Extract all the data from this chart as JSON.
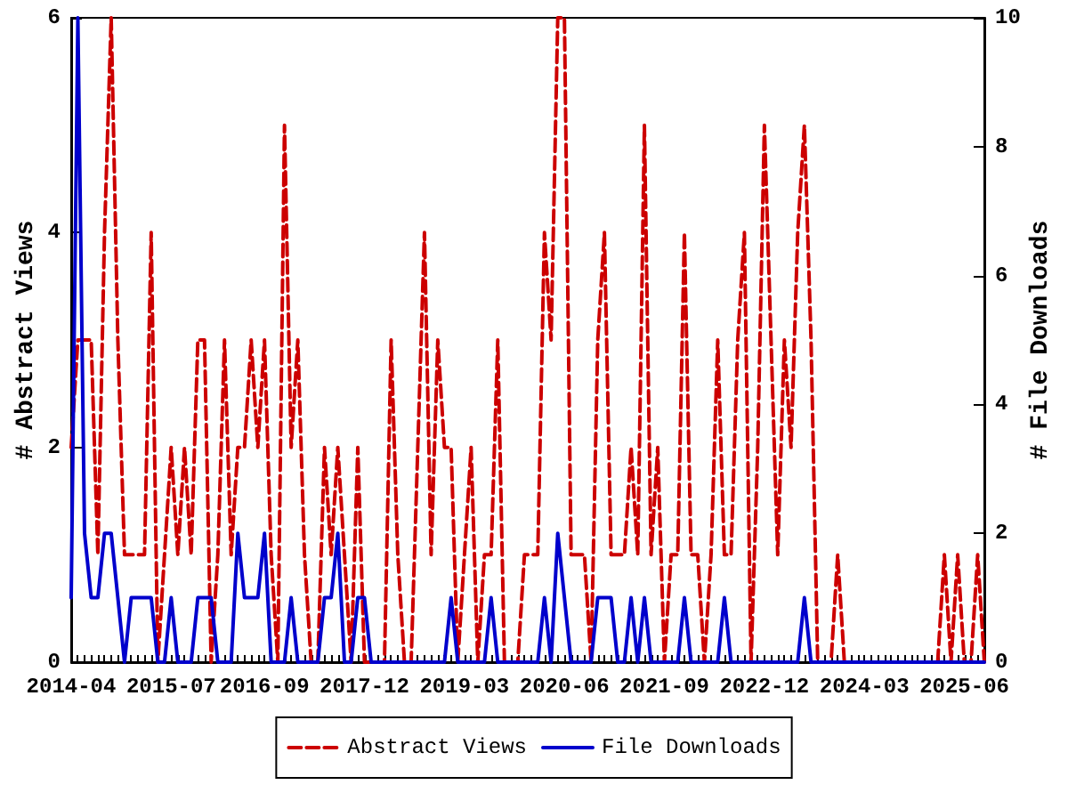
{
  "chart_data": {
    "type": "line",
    "ylabel": "# Abstract Views",
    "y2label": "# File Downloads",
    "categories": [
      "2014-04",
      null,
      null,
      null,
      null,
      null,
      null,
      null,
      null,
      null,
      null,
      null,
      null,
      null,
      null,
      "2015-07",
      null,
      null,
      null,
      null,
      null,
      null,
      null,
      null,
      null,
      null,
      null,
      null,
      null,
      "2016-09",
      null,
      null,
      null,
      null,
      null,
      null,
      null,
      null,
      null,
      null,
      null,
      null,
      null,
      null,
      "2017-12",
      null,
      null,
      null,
      null,
      null,
      null,
      null,
      null,
      null,
      null,
      null,
      null,
      null,
      null,
      "2019-03",
      null,
      null,
      null,
      null,
      null,
      null,
      null,
      null,
      null,
      null,
      null,
      null,
      null,
      null,
      "2020-06",
      null,
      null,
      null,
      null,
      null,
      null,
      null,
      null,
      null,
      null,
      null,
      null,
      null,
      null,
      "2021-09",
      null,
      null,
      null,
      null,
      null,
      null,
      null,
      null,
      null,
      null,
      null,
      null,
      null,
      null,
      "2022-12",
      null,
      null,
      null,
      null,
      null,
      null,
      null,
      null,
      null,
      null,
      null,
      null,
      null,
      null,
      "2024-03",
      null,
      null,
      null,
      null,
      null,
      null,
      null,
      null,
      null,
      null,
      null,
      null,
      null,
      null,
      "2025-06",
      null,
      null,
      null
    ],
    "series": [
      {
        "name": "Abstract Views",
        "color": "#cc0000",
        "line_style": "dashed",
        "values": [
          2,
          3,
          3,
          3,
          1,
          4,
          6,
          3,
          1,
          1,
          1,
          1,
          4,
          0,
          1,
          2,
          1,
          2,
          1,
          3,
          3,
          0,
          1,
          3,
          1,
          2,
          2,
          3,
          2,
          3,
          1,
          0,
          5,
          2,
          3,
          1,
          0,
          0,
          2,
          1,
          2,
          1,
          0,
          2,
          0,
          0,
          0,
          0,
          3,
          1,
          0,
          0,
          2,
          4,
          1,
          3,
          2,
          2,
          0,
          1,
          2,
          0,
          1,
          1,
          3,
          0,
          0,
          0,
          1,
          1,
          1,
          4,
          3,
          6,
          6,
          1,
          1,
          1,
          0,
          3,
          4,
          1,
          1,
          1,
          2,
          1,
          5,
          1,
          2,
          0,
          1,
          1,
          4,
          1,
          1,
          0,
          1,
          3,
          1,
          1,
          3,
          4,
          0,
          2,
          5,
          3,
          1,
          3,
          2,
          4,
          5,
          3,
          0,
          0,
          0,
          1,
          0,
          0,
          0,
          0,
          0,
          0,
          0,
          0,
          0,
          0,
          0,
          0,
          0,
          0,
          0,
          1,
          0,
          1,
          0,
          0,
          1,
          0
        ]
      },
      {
        "name": "File Downloads",
        "color": "#0000cc",
        "line_style": "solid",
        "axis": "y2",
        "values": [
          1,
          10,
          2,
          1,
          1,
          2,
          2,
          1,
          0,
          1,
          1,
          1,
          1,
          0,
          0,
          1,
          0,
          0,
          0,
          1,
          1,
          1,
          0,
          0,
          0,
          2,
          1,
          1,
          1,
          2,
          0,
          0,
          0,
          1,
          0,
          0,
          0,
          0,
          1,
          1,
          2,
          0,
          0,
          1,
          1,
          0,
          0,
          0,
          0,
          0,
          0,
          0,
          0,
          0,
          0,
          0,
          0,
          1,
          0,
          0,
          0,
          0,
          0,
          1,
          0,
          0,
          0,
          0,
          0,
          0,
          0,
          1,
          0,
          2,
          1,
          0,
          0,
          0,
          0,
          1,
          1,
          1,
          0,
          0,
          1,
          0,
          1,
          0,
          0,
          0,
          0,
          0,
          1,
          0,
          0,
          0,
          0,
          0,
          1,
          0,
          0,
          0,
          0,
          0,
          0,
          0,
          0,
          0,
          0,
          0,
          1,
          0,
          0,
          0,
          0,
          0,
          0,
          0,
          0,
          0,
          0,
          0,
          0,
          0,
          0,
          0,
          0,
          0,
          0,
          0,
          0,
          0,
          0,
          0,
          0,
          0,
          0,
          0
        ]
      }
    ],
    "ylim": [
      0,
      6
    ],
    "yticks": [
      0,
      2,
      4,
      6
    ],
    "y2lim": [
      0,
      10
    ],
    "y2ticks": [
      0,
      2,
      4,
      6,
      8,
      10
    ],
    "legend": "bottom",
    "marker": "none"
  }
}
